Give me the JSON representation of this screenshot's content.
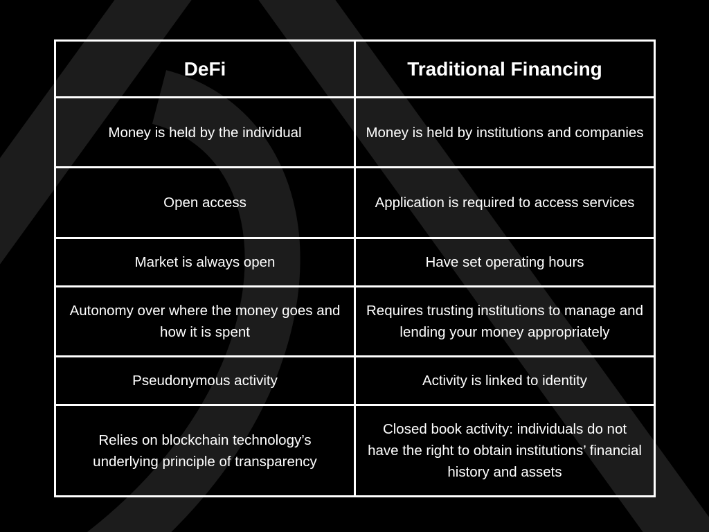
{
  "table": {
    "headers": [
      "DeFi",
      "Traditional Financing"
    ],
    "rows": [
      [
        "Money is held by the individual",
        "Money is held by institutions and companies"
      ],
      [
        "Open access",
        "Application is required to access services"
      ],
      [
        "Market is always open",
        "Have set operating hours"
      ],
      [
        "Autonomy over where the money goes and how it is spent",
        "Requires trusting institutions to manage and lending your money appropriately"
      ],
      [
        "Pseudonymous activity",
        "Activity is linked to identity"
      ],
      [
        "Relies on blockchain technology’s underlying principle of transparency",
        "Closed book activity: individuals do not have the right to obtain institutions’ financial history and assets"
      ]
    ]
  },
  "colors": {
    "background": "#000000",
    "text": "#ffffff",
    "border": "#ffffff",
    "watermark": "#1c1c1c"
  },
  "icons": {
    "watermark": "stylized-a-logo-watermark"
  }
}
